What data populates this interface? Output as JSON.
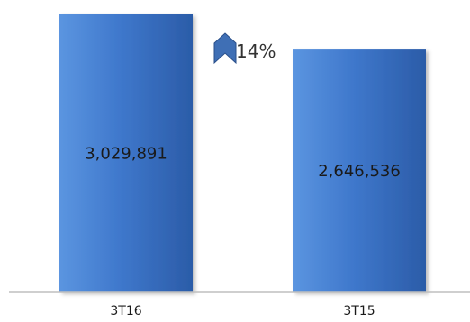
{
  "chart_data": {
    "type": "bar",
    "categories": [
      "3T16",
      "3T15"
    ],
    "values": [
      3029891,
      2646536
    ],
    "data_labels": [
      "3,029,891",
      "2,646,536"
    ],
    "ylim": [
      0,
      3029891
    ],
    "growth_annotation": {
      "text": "14%",
      "icon": "up-arrow-icon",
      "color": "#3f6fb5"
    },
    "colors": {
      "bar_light": "#5b95e0",
      "bar_mid": "#3f78cc",
      "bar_dark": "#2b5ca8",
      "axis": "#bfbfbf"
    },
    "grid": false,
    "legend": "none"
  }
}
